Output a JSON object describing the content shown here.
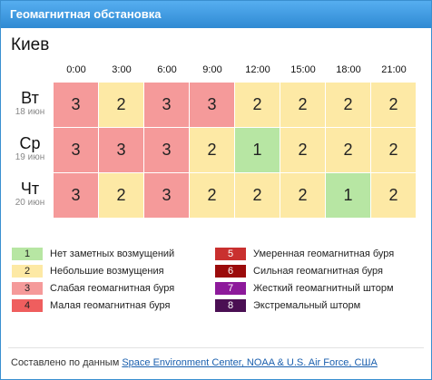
{
  "widget": {
    "title": "Геомагнитная обстановка",
    "city": "Киев",
    "hours": [
      "0:00",
      "3:00",
      "6:00",
      "9:00",
      "12:00",
      "15:00",
      "18:00",
      "21:00"
    ],
    "days": [
      {
        "name": "Вт",
        "date": "18 июн",
        "values": [
          "3",
          "2",
          "3",
          "3",
          "2",
          "2",
          "2",
          "2"
        ]
      },
      {
        "name": "Ср",
        "date": "19 июн",
        "values": [
          "3",
          "3",
          "3",
          "2",
          "1",
          "2",
          "2",
          "2"
        ]
      },
      {
        "name": "Чт",
        "date": "20 июн",
        "values": [
          "3",
          "2",
          "3",
          "2",
          "2",
          "2",
          "1",
          "2"
        ]
      }
    ]
  },
  "colors": {
    "1": "#b7e6a3",
    "2": "#fde9a5",
    "3": "#f59a9a",
    "4": "#ef5e5e",
    "5": "#c9302f",
    "6": "#9b0b0b",
    "7": "#8d1a9b",
    "8": "#4a0f53"
  },
  "legend": [
    {
      "level": "1",
      "label": "Нет заметных возмущений"
    },
    {
      "level": "2",
      "label": "Небольшие возмущения"
    },
    {
      "level": "3",
      "label": "Слабая геомагнитная буря"
    },
    {
      "level": "4",
      "label": "Малая геомагнитная буря"
    },
    {
      "level": "5",
      "label": "Умеренная геомагнитная буря"
    },
    {
      "level": "6",
      "label": "Сильная геомагнитная буря"
    },
    {
      "level": "7",
      "label": "Жесткий геомагнитный шторм"
    },
    {
      "level": "8",
      "label": "Экстремальный шторм"
    }
  ],
  "footer": {
    "prefix": "Составлено по данным",
    "link": "Space Environment Center, NOAA & U.S. Air Force, США"
  }
}
